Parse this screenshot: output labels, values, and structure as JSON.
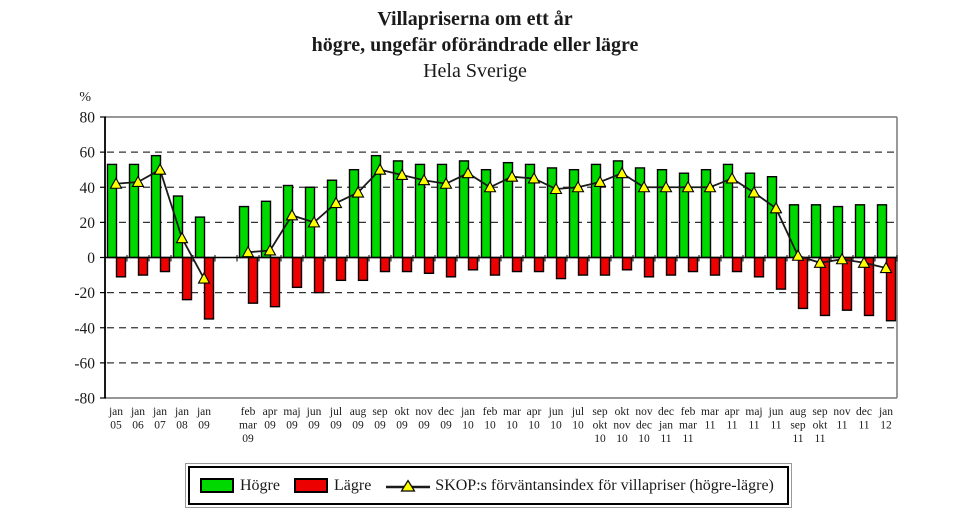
{
  "chart_data": {
    "type": "bar",
    "title": "Villapriserna om ett år",
    "subtitle": "högre, ungefär oförändrade eller lägre",
    "region": "Hela Sverige",
    "y_unit": "%",
    "ylim": [
      -80,
      80
    ],
    "y_ticks": [
      80,
      60,
      40,
      20,
      0,
      -20,
      -40,
      -60,
      -80
    ],
    "grid": "dashed-horizontal-every-20",
    "legend_position": "bottom",
    "series": [
      {
        "name": "Högre",
        "type": "bar",
        "color": "#00d900"
      },
      {
        "name": "Lägre",
        "type": "bar",
        "color": "#ec0000"
      },
      {
        "name": "SKOP:s förväntansindex för villapriser (högre-lägre)",
        "type": "line",
        "marker": "triangle",
        "marker_color": "#ffff00",
        "line_color": "#1a1a1a"
      }
    ],
    "categories": [
      {
        "label_lines": [
          "jan",
          "05"
        ],
        "hogre": 53,
        "lagre": -11,
        "index": 42
      },
      {
        "label_lines": [
          "jan",
          "06"
        ],
        "hogre": 53,
        "lagre": -10,
        "index": 43
      },
      {
        "label_lines": [
          "jan",
          "07"
        ],
        "hogre": 58,
        "lagre": -8,
        "index": 50
      },
      {
        "label_lines": [
          "jan",
          "08"
        ],
        "hogre": 35,
        "lagre": -24,
        "index": 11
      },
      {
        "label_lines": [
          "jan",
          "09"
        ],
        "hogre": 23,
        "lagre": -35,
        "index": -12
      },
      {
        "gap": true,
        "label_lines": []
      },
      {
        "label_lines": [
          "feb",
          "mar",
          "09"
        ],
        "hogre": 29,
        "lagre": -26,
        "index": 3
      },
      {
        "label_lines": [
          "apr",
          "09"
        ],
        "hogre": 32,
        "lagre": -28,
        "index": 4
      },
      {
        "label_lines": [
          "maj",
          "09"
        ],
        "hogre": 41,
        "lagre": -17,
        "index": 24
      },
      {
        "label_lines": [
          "jun",
          "09"
        ],
        "hogre": 40,
        "lagre": -20,
        "index": 20
      },
      {
        "label_lines": [
          "jul",
          "09"
        ],
        "hogre": 44,
        "lagre": -13,
        "index": 31
      },
      {
        "label_lines": [
          "aug",
          "09"
        ],
        "hogre": 50,
        "lagre": -13,
        "index": 37
      },
      {
        "label_lines": [
          "sep",
          "09"
        ],
        "hogre": 58,
        "lagre": -8,
        "index": 50
      },
      {
        "label_lines": [
          "okt",
          "09"
        ],
        "hogre": 55,
        "lagre": -8,
        "index": 47
      },
      {
        "label_lines": [
          "nov",
          "09"
        ],
        "hogre": 53,
        "lagre": -9,
        "index": 44
      },
      {
        "label_lines": [
          "dec",
          "09"
        ],
        "hogre": 53,
        "lagre": -11,
        "index": 42
      },
      {
        "label_lines": [
          "jan",
          "10"
        ],
        "hogre": 55,
        "lagre": -7,
        "index": 48
      },
      {
        "label_lines": [
          "feb",
          "10"
        ],
        "hogre": 50,
        "lagre": -10,
        "index": 40
      },
      {
        "label_lines": [
          "mar",
          "10"
        ],
        "hogre": 54,
        "lagre": -8,
        "index": 46
      },
      {
        "label_lines": [
          "apr",
          "10"
        ],
        "hogre": 53,
        "lagre": -8,
        "index": 45
      },
      {
        "label_lines": [
          "jun",
          "10"
        ],
        "hogre": 51,
        "lagre": -12,
        "index": 39
      },
      {
        "label_lines": [
          "jul",
          "10"
        ],
        "hogre": 50,
        "lagre": -10,
        "index": 40
      },
      {
        "label_lines": [
          "sep",
          "okt",
          "10"
        ],
        "hogre": 53,
        "lagre": -10,
        "index": 43
      },
      {
        "label_lines": [
          "okt",
          "nov",
          "10"
        ],
        "hogre": 55,
        "lagre": -7,
        "index": 48
      },
      {
        "label_lines": [
          "nov",
          "dec",
          "10"
        ],
        "hogre": 51,
        "lagre": -11,
        "index": 40
      },
      {
        "label_lines": [
          "dec",
          "jan",
          "11"
        ],
        "hogre": 50,
        "lagre": -10,
        "index": 40
      },
      {
        "label_lines": [
          "feb",
          "mar",
          "11"
        ],
        "hogre": 48,
        "lagre": -8,
        "index": 40
      },
      {
        "label_lines": [
          "mar",
          "11"
        ],
        "hogre": 50,
        "lagre": -10,
        "index": 40
      },
      {
        "label_lines": [
          "apr",
          "11"
        ],
        "hogre": 53,
        "lagre": -8,
        "index": 45
      },
      {
        "label_lines": [
          "maj",
          "11"
        ],
        "hogre": 48,
        "lagre": -11,
        "index": 37
      },
      {
        "label_lines": [
          "jun",
          "11"
        ],
        "hogre": 46,
        "lagre": -18,
        "index": 28
      },
      {
        "label_lines": [
          "aug",
          "sep",
          "11"
        ],
        "hogre": 30,
        "lagre": -29,
        "index": 1
      },
      {
        "label_lines": [
          "sep",
          "okt",
          "11"
        ],
        "hogre": 30,
        "lagre": -33,
        "index": -3
      },
      {
        "label_lines": [
          "nov",
          "11"
        ],
        "hogre": 29,
        "lagre": -30,
        "index": -1
      },
      {
        "label_lines": [
          "dec",
          "11"
        ],
        "hogre": 30,
        "lagre": -33,
        "index": -3
      },
      {
        "label_lines": [
          "jan",
          "12"
        ],
        "hogre": 30,
        "lagre": -36,
        "index": -6
      }
    ]
  },
  "colors": {
    "frame": "#888888",
    "axis": "#000000",
    "gridline": "#333333",
    "text": "#1a1a1a",
    "background": "#ffffff"
  }
}
